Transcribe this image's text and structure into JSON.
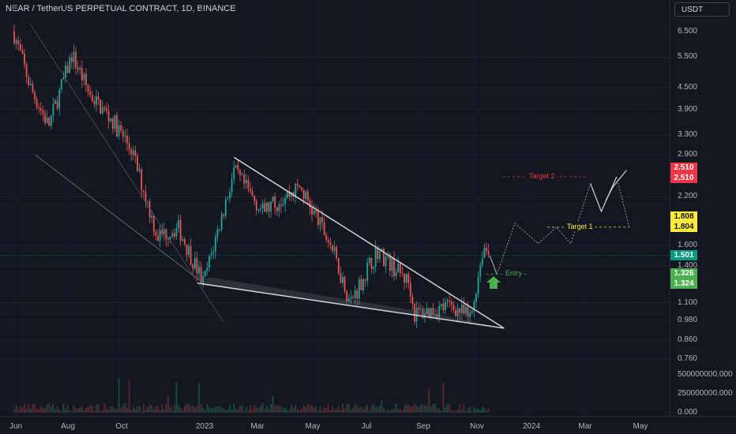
{
  "header": {
    "title": "NEAR / TetherUS PERPETUAL CONTRACT, 1D, BINANCE",
    "currency_button": "USDT"
  },
  "colors": {
    "background": "#131722",
    "up_candle": "#26a69a",
    "down_candle": "#ef5350",
    "target2": "#f23645",
    "target1": "#ffeb3b",
    "last_price": "#089981",
    "entry": "#4caf50",
    "trendline": "#d1d4dc"
  },
  "chart_data": {
    "type": "candlestick",
    "title": "NEAR / TetherUS PERPETUAL CONTRACT, 1D, BINANCE",
    "y_scale": "log",
    "price_ticks": [
      "6.500",
      "5.500",
      "4.500",
      "3.900",
      "3.300",
      "2.900",
      "2.200",
      "1.600",
      "1.400",
      "1.100",
      "0.980",
      "0.860",
      "0.760"
    ],
    "volume_ticks": [
      "500000000.000",
      "250000000.000",
      "0.000"
    ],
    "x_ticks": [
      "Jun",
      "Aug",
      "Oct",
      "2023",
      "Mar",
      "May",
      "Jul",
      "Sep",
      "Nov",
      "2024",
      "Mar",
      "May"
    ],
    "price_path": [
      {
        "date": "2022-06",
        "price": 6.5
      },
      {
        "date": "2022-06-20",
        "price": 4.5
      },
      {
        "date": "2022-07-10",
        "price": 3.5
      },
      {
        "date": "2022-08-05",
        "price": 5.6
      },
      {
        "date": "2022-08-25",
        "price": 4.3
      },
      {
        "date": "2022-09-20",
        "price": 3.6
      },
      {
        "date": "2022-10-10",
        "price": 3.0
      },
      {
        "date": "2022-11-08",
        "price": 1.7
      },
      {
        "date": "2022-12-01",
        "price": 1.8
      },
      {
        "date": "2022-12-29",
        "price": 1.25
      },
      {
        "date": "2023-02-01",
        "price": 2.6
      },
      {
        "date": "2023-03-05",
        "price": 2.0
      },
      {
        "date": "2023-04-15",
        "price": 2.35
      },
      {
        "date": "2023-05-20",
        "price": 1.6
      },
      {
        "date": "2023-06-10",
        "price": 1.1
      },
      {
        "date": "2023-07-10",
        "price": 1.55
      },
      {
        "date": "2023-08-15",
        "price": 1.25
      },
      {
        "date": "2023-08-20",
        "price": 1.02
      },
      {
        "date": "2023-10-01",
        "price": 1.08
      },
      {
        "date": "2023-10-22",
        "price": 0.99
      },
      {
        "date": "2023-11-05",
        "price": 1.6
      },
      {
        "date": "2023-11-12",
        "price": 1.5
      }
    ],
    "projection": [
      {
        "date": "2023-11-12",
        "price": 1.5
      },
      {
        "date": "2023-11-20",
        "price": 1.326
      },
      {
        "date": "2023-12-10",
        "price": 1.85
      },
      {
        "date": "2024-01-05",
        "price": 1.62
      },
      {
        "date": "2024-01-25",
        "price": 1.804
      },
      {
        "date": "2024-02-10",
        "price": 1.62
      },
      {
        "date": "2024-03-03",
        "price": 2.4
      },
      {
        "date": "2024-03-15",
        "price": 2.0
      },
      {
        "date": "2024-04-01",
        "price": 2.51
      },
      {
        "date": "2024-04-15",
        "price": 1.804
      }
    ],
    "wedge": {
      "upper": [
        {
          "date": "2023-02-01",
          "price": 2.85
        },
        {
          "date": "2023-11-28",
          "price": 0.93
        }
      ],
      "lower": [
        {
          "date": "2022-12-22",
          "price": 1.25
        },
        {
          "date": "2023-11-28",
          "price": 0.93
        }
      ]
    },
    "annotations": [
      {
        "text": "Target 2",
        "price": 2.51
      },
      {
        "text": "Target 1",
        "price": 1.804
      },
      {
        "text": "Entry",
        "price": 1.326
      }
    ],
    "price_labels": [
      {
        "value": "2.510",
        "role": "target2"
      },
      {
        "value": "2.510",
        "role": "target2"
      },
      {
        "value": "1.808",
        "role": "target1"
      },
      {
        "value": "1.804",
        "role": "target1"
      },
      {
        "value": "1.501",
        "role": "last_price"
      },
      {
        "value": "1.326",
        "role": "entry"
      },
      {
        "value": "1.324",
        "role": "entry"
      }
    ]
  }
}
